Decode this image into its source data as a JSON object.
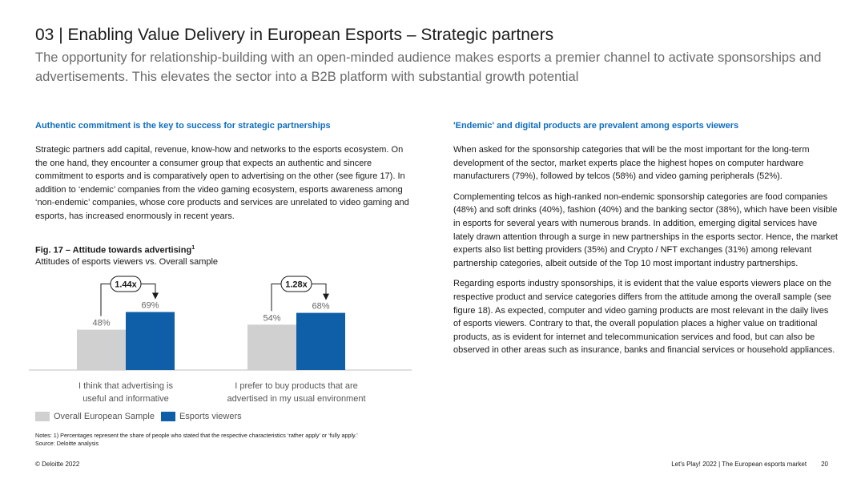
{
  "header": {
    "title": "03 | Enabling Value Delivery in European Esports – Strategic partners",
    "subtitle": "The opportunity for relationship-building with an open-minded audience makes esports a premier channel to activate sponsorships and advertisements. This elevates the sector into a B2B platform with substantial growth potential"
  },
  "left": {
    "heading": "Authentic commitment is the key to success for strategic partnerships",
    "paragraph": "Strategic partners add capital, revenue, know-how and networks to the esports ecosystem. On the one hand, they encounter a consumer group that expects an authentic and sincere commitment to esports and is comparatively open to advertising on the other (see figure 17). In addition to ‘endemic’ companies from the video gaming ecosystem, esports awareness among ‘non-endemic’ companies, whose core products and services are unrelated to video gaming and esports, has increased enormously in recent years."
  },
  "figure": {
    "title": "Fig. 17 – Attitude towards advertising",
    "title_sup": "1",
    "subtitle": "Attitudes of esports viewers vs. Overall sample"
  },
  "chart_data": {
    "type": "bar",
    "categories": [
      "I think that advertising is useful and informative",
      "I prefer to buy products that are advertised in my usual environment"
    ],
    "category_lines": [
      [
        "I think that advertising is",
        "useful and informative"
      ],
      [
        "I prefer to buy products that are",
        "advertised in my usual environment"
      ]
    ],
    "series": [
      {
        "name": "Overall European Sample",
        "values": [
          48,
          54
        ],
        "labels": [
          "48%",
          "54%"
        ],
        "color": "#d0d0d0"
      },
      {
        "name": "Esports viewers",
        "values": [
          69,
          68
        ],
        "labels": [
          "69%",
          "68%"
        ],
        "color": "#0f5ea8"
      }
    ],
    "multipliers": [
      "1.44x",
      "1.28x"
    ],
    "ylim": [
      0,
      100
    ],
    "legend_position": "bottom-left",
    "grid": false,
    "label_color": "#666666"
  },
  "legend": {
    "items": [
      {
        "label": "Overall European Sample",
        "color": "#d0d0d0"
      },
      {
        "label": "Esports viewers",
        "color": "#0f5ea8"
      }
    ]
  },
  "notes": {
    "line1": "Notes: 1) Percentages represent the share of people who stated that the respective characteristics ‘rather apply’ or ‘fully apply.’",
    "line2": "Source: Deloitte analysis"
  },
  "right": {
    "heading": "'Endemic' and digital products are prevalent among esports viewers",
    "paragraphs": [
      "When asked for the sponsorship categories that will be the most important for the long-term development of the sector, market experts place the highest hopes on computer hardware manufacturers (79%), followed by telcos (58%) and video gaming peripherals (52%).",
      "Complementing telcos as high-ranked non-endemic sponsorship categories are food companies (48%) and soft drinks (40%), fashion (40%) and the banking sector (38%), which have been visible in esports for several years with numerous brands. In addition, emerging digital services have lately drawn attention through a surge in new partnerships in the esports sector. Hence, the market experts also list betting providers (35%) and Crypto / NFT exchanges (31%) among relevant partnership categories, albeit outside of the Top 10 most important industry partnerships.",
      "Regarding esports industry sponsorships, it is evident that the value esports viewers place on the respective product and service categories differs from the attitude among the overall sample (see figure 18). As expected, computer and video gaming products are most relevant in the daily lives of esports viewers. Contrary to that, the overall population places a higher value on traditional products, as is evident for internet and telecommunication services and food, but can also be observed in other areas such as insurance, banks and financial services or household appliances."
    ]
  },
  "footer": {
    "left": "© Deloitte 2022",
    "right": "Let's Play! 2022 | The European esports market",
    "page": "20"
  }
}
